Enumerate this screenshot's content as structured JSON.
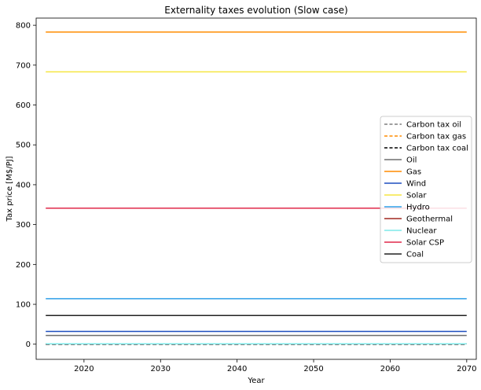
{
  "chart_data": {
    "type": "line",
    "title": "Externality taxes evolution (Slow case)",
    "xlabel": "Year",
    "ylabel": "Tax price [M$/PJ]",
    "xlim": [
      2013.75,
      2071.25
    ],
    "ylim": [
      -38,
      818
    ],
    "xticks": [
      2020,
      2030,
      2040,
      2050,
      2060,
      2070
    ],
    "yticks": [
      0,
      100,
      200,
      300,
      400,
      500,
      600,
      700,
      800
    ],
    "grid": false,
    "legend_position": "right",
    "x": [
      2015,
      2070
    ],
    "series": [
      {
        "name": "Carbon tax oil",
        "values": [
          0,
          0
        ],
        "color": "#7f7f7f",
        "dashed": true
      },
      {
        "name": "Carbon tax gas",
        "values": [
          0,
          0
        ],
        "color": "#ff8c00",
        "dashed": true
      },
      {
        "name": "Carbon tax coal",
        "values": [
          0,
          0
        ],
        "color": "#000000",
        "dashed": true
      },
      {
        "name": "Oil",
        "values": [
          22,
          22
        ],
        "color": "#6e6e6e",
        "dashed": false
      },
      {
        "name": "Gas",
        "values": [
          783,
          783
        ],
        "color": "#ff8c00",
        "dashed": false
      },
      {
        "name": "Wind",
        "values": [
          32,
          32
        ],
        "color": "#1f4fbf",
        "dashed": false
      },
      {
        "name": "Solar",
        "values": [
          683,
          683
        ],
        "color": "#f5e642",
        "dashed": false
      },
      {
        "name": "Hydro",
        "values": [
          114,
          114
        ],
        "color": "#2f9fe8",
        "dashed": false
      },
      {
        "name": "Geothermal",
        "values": [
          1,
          1
        ],
        "color": "#a02820",
        "dashed": false
      },
      {
        "name": "Nuclear",
        "values": [
          1,
          1
        ],
        "color": "#7de8e8",
        "dashed": false
      },
      {
        "name": "Solar CSP",
        "values": [
          341,
          341
        ],
        "color": "#e0284a",
        "dashed": false
      },
      {
        "name": "Coal",
        "values": [
          72,
          72
        ],
        "color": "#222222",
        "dashed": false
      }
    ]
  }
}
